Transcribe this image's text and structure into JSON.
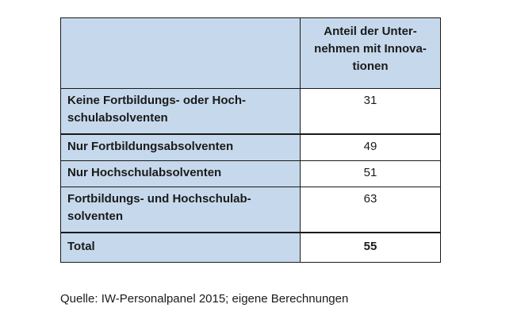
{
  "chart_data": {
    "type": "table",
    "columns": [
      "",
      "Anteil der Unter-nehmen mit Innova-tionen"
    ],
    "header_lines": [
      "Anteil der Unter-",
      "nehmen mit Innova-",
      "tionen"
    ],
    "rows": [
      {
        "label_lines": [
          "Keine Fortbildungs- oder Hoch-",
          "schulabsolventen"
        ],
        "value": 31
      },
      {
        "label_lines": [
          "Nur Fortbildungsabsolventen"
        ],
        "value": 49
      },
      {
        "label_lines": [
          "Nur Hochschulabsolventen"
        ],
        "value": 51
      },
      {
        "label_lines": [
          "Fortbildungs- und Hochschulab-",
          "solventen"
        ],
        "value": 63
      },
      {
        "label_lines": [
          "Total"
        ],
        "value": 55
      }
    ]
  },
  "source": "Quelle: IW-Personalpanel 2015; eigene Berechnungen",
  "colors": {
    "header_fill": "#c6d9ec",
    "border": "#1a1a1a"
  }
}
